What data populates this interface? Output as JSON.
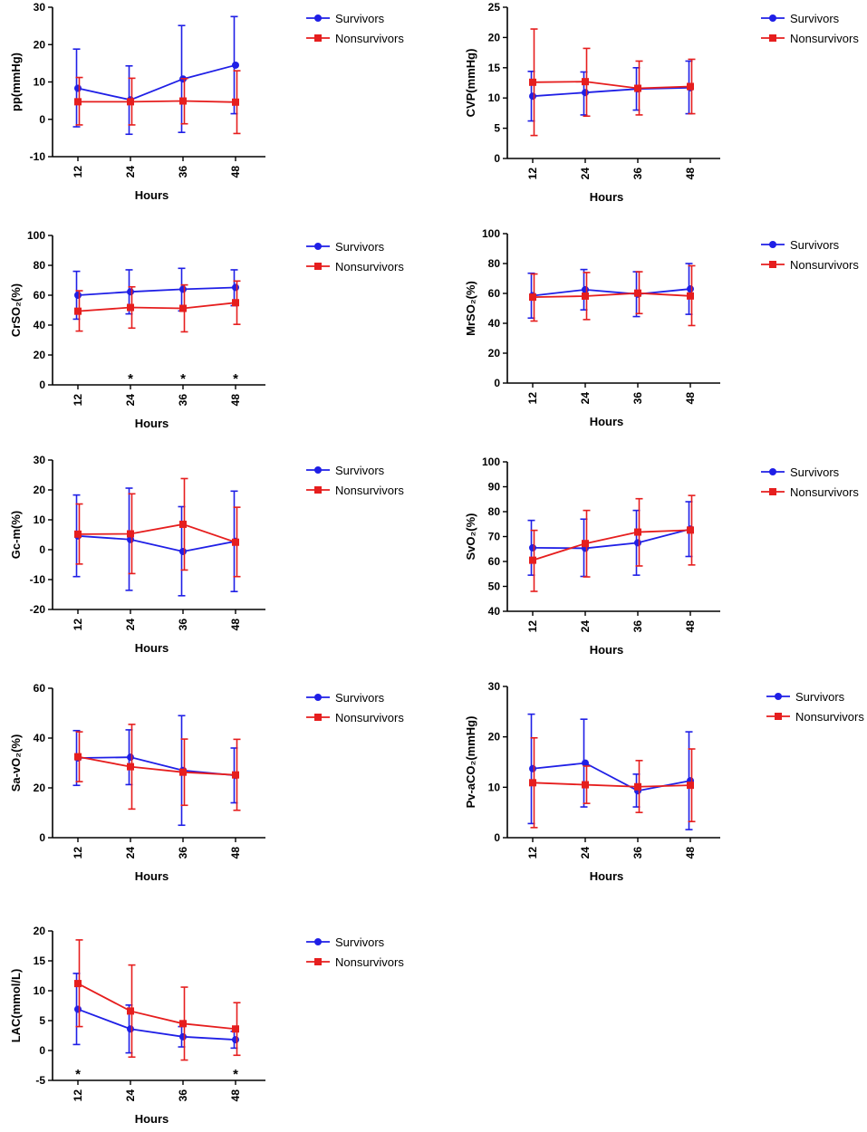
{
  "figure": {
    "legend": {
      "series_a": "Survivors",
      "series_b": "Nonsurvivors"
    },
    "colors": {
      "survivors": "#1f1fe6",
      "nonsurvivors": "#e61e1e",
      "axis": "#000000"
    }
  },
  "chart_data": [
    {
      "type": "line",
      "id": "pp",
      "title": "",
      "ylabel": "pp(mmHg)",
      "xlabel": "Hours",
      "categories": [
        "12",
        "24",
        "36",
        "48"
      ],
      "ylim": [
        -10,
        30
      ],
      "yticks": [
        -10,
        0,
        10,
        20,
        30
      ],
      "series": [
        {
          "name": "Survivors",
          "values": [
            8.3,
            5.2,
            10.8,
            14.5
          ],
          "err_low": [
            -2.0,
            -4.0,
            -3.5,
            1.5
          ],
          "err_high": [
            18.8,
            14.3,
            25.1,
            27.5
          ]
        },
        {
          "name": "Nonsurvivors",
          "values": [
            4.7,
            4.7,
            4.9,
            4.6
          ],
          "err_low": [
            -1.5,
            -1.5,
            -1.2,
            -3.8
          ],
          "err_high": [
            11.2,
            11.0,
            10.9,
            13.0
          ]
        }
      ],
      "annotations": []
    },
    {
      "type": "line",
      "id": "cvp",
      "title": "",
      "ylabel": "CVP(mmHg)",
      "xlabel": "Hours",
      "categories": [
        "12",
        "24",
        "36",
        "48"
      ],
      "ylim": [
        0,
        25
      ],
      "yticks": [
        0,
        5,
        10,
        15,
        20,
        25
      ],
      "series": [
        {
          "name": "Survivors",
          "values": [
            10.3,
            10.9,
            11.5,
            11.7
          ],
          "err_low": [
            6.2,
            7.2,
            8.0,
            7.4
          ],
          "err_high": [
            14.4,
            14.3,
            15.0,
            16.1
          ]
        },
        {
          "name": "Nonsurvivors",
          "values": [
            12.6,
            12.7,
            11.6,
            11.9
          ],
          "err_low": [
            3.8,
            7.0,
            7.2,
            7.4
          ],
          "err_high": [
            21.4,
            18.2,
            16.1,
            16.4
          ]
        }
      ],
      "annotations": []
    },
    {
      "type": "line",
      "id": "crso2",
      "title": "",
      "ylabel": "CrSO₂(%)",
      "xlabel": "Hours",
      "categories": [
        "12",
        "24",
        "36",
        "48"
      ],
      "ylim": [
        0,
        100
      ],
      "yticks": [
        0,
        20,
        40,
        60,
        80,
        100
      ],
      "series": [
        {
          "name": "Survivors",
          "values": [
            60,
            62.3,
            64,
            65.2
          ],
          "err_low": [
            44,
            47.5,
            49.5,
            53
          ],
          "err_high": [
            76,
            77,
            78,
            77
          ]
        },
        {
          "name": "Nonsurvivors",
          "values": [
            49.3,
            51.8,
            51.2,
            55
          ],
          "err_low": [
            36,
            38,
            35.5,
            40.5
          ],
          "err_high": [
            63,
            65.6,
            66.9,
            69.5
          ]
        }
      ],
      "annotations": [
        "*",
        "*",
        "*"
      ],
      "annotation_categories": [
        "24",
        "36",
        "48"
      ]
    },
    {
      "type": "line",
      "id": "mrso2",
      "title": "",
      "ylabel": "MrSO₂(%)",
      "xlabel": "Hours",
      "categories": [
        "12",
        "24",
        "36",
        "48"
      ],
      "ylim": [
        0,
        100
      ],
      "yticks": [
        0,
        20,
        40,
        60,
        80,
        100
      ],
      "series": [
        {
          "name": "Survivors",
          "values": [
            58.5,
            62.5,
            59.5,
            63
          ],
          "err_low": [
            43.5,
            49,
            44.5,
            46
          ],
          "err_high": [
            73.5,
            76,
            74.5,
            80
          ]
        },
        {
          "name": "Nonsurvivors",
          "values": [
            57.5,
            58.2,
            60.2,
            58.3
          ],
          "err_low": [
            41.5,
            42.5,
            46.5,
            38.5
          ],
          "err_high": [
            73,
            74,
            74.5,
            78.5
          ]
        }
      ],
      "annotations": []
    },
    {
      "type": "line",
      "id": "gcm",
      "title": "",
      "ylabel": "Gc-m(%)",
      "xlabel": "Hours",
      "categories": [
        "12",
        "24",
        "36",
        "48"
      ],
      "ylim": [
        -20,
        30
      ],
      "yticks": [
        -20,
        -10,
        0,
        10,
        20,
        30
      ],
      "series": [
        {
          "name": "Survivors",
          "values": [
            4.6,
            3.4,
            -0.6,
            2.8
          ],
          "err_low": [
            -9.0,
            -13.6,
            -15.4,
            -14.0
          ],
          "err_high": [
            18.3,
            20.6,
            14.4,
            19.6
          ]
        },
        {
          "name": "Nonsurvivors",
          "values": [
            5.2,
            5.3,
            8.5,
            2.5
          ],
          "err_low": [
            -4.8,
            -8.0,
            -6.8,
            -9.0
          ],
          "err_high": [
            15.3,
            18.7,
            23.8,
            14.2
          ]
        }
      ],
      "annotations": []
    },
    {
      "type": "line",
      "id": "svo2",
      "title": "",
      "ylabel": "SvO₂(%)",
      "xlabel": "Hours",
      "categories": [
        "12",
        "24",
        "36",
        "48"
      ],
      "ylim": [
        40,
        100
      ],
      "yticks": [
        40,
        50,
        60,
        70,
        80,
        90,
        100
      ],
      "series": [
        {
          "name": "Survivors",
          "values": [
            65.5,
            65.3,
            67.5,
            73
          ],
          "err_low": [
            54.5,
            54,
            54.5,
            62
          ],
          "err_high": [
            76.5,
            77,
            80.5,
            84
          ]
        },
        {
          "name": "Nonsurvivors",
          "values": [
            60.5,
            67.2,
            71.8,
            72.6
          ],
          "err_low": [
            48,
            53.8,
            58.2,
            58.6
          ],
          "err_high": [
            72.5,
            80.5,
            85.2,
            86.5
          ]
        }
      ],
      "annotations": []
    },
    {
      "type": "line",
      "id": "savo2",
      "title": "",
      "ylabel": "Sa-vO₂(%)",
      "xlabel": "Hours",
      "categories": [
        "12",
        "24",
        "36",
        "48"
      ],
      "ylim": [
        0,
        60
      ],
      "yticks": [
        0,
        20,
        40,
        60
      ],
      "series": [
        {
          "name": "Survivors",
          "values": [
            32,
            32.3,
            27,
            25
          ],
          "err_low": [
            21,
            21.3,
            5,
            14
          ],
          "err_high": [
            43,
            43.3,
            49,
            36
          ]
        },
        {
          "name": "Nonsurvivors",
          "values": [
            32.5,
            28.5,
            26.3,
            25.2
          ],
          "err_low": [
            22.5,
            11.5,
            13,
            11
          ],
          "err_high": [
            42.5,
            45.5,
            39.6,
            39.5
          ]
        }
      ],
      "annotations": []
    },
    {
      "type": "line",
      "id": "pvaco2",
      "title": "",
      "ylabel": "Pv-aCO₂(mmHg)",
      "xlabel": "Hours",
      "categories": [
        "12",
        "24",
        "36",
        "48"
      ],
      "ylim": [
        0,
        30
      ],
      "yticks": [
        0,
        10,
        20,
        30
      ],
      "series": [
        {
          "name": "Survivors",
          "values": [
            13.7,
            14.8,
            9.3,
            11.3
          ],
          "err_low": [
            2.8,
            6.1,
            6.1,
            1.6
          ],
          "err_high": [
            24.5,
            23.5,
            12.6,
            21.0
          ]
        },
        {
          "name": "Nonsurvivors",
          "values": [
            10.9,
            10.5,
            10.1,
            10.4
          ],
          "err_low": [
            2.0,
            6.8,
            5.0,
            3.2
          ],
          "err_high": [
            19.8,
            14.2,
            15.3,
            17.6
          ]
        }
      ],
      "annotations": []
    },
    {
      "type": "line",
      "id": "lac",
      "title": "",
      "ylabel": "LAC(mmol/L)",
      "xlabel": "Hours",
      "categories": [
        "12",
        "24",
        "36",
        "48"
      ],
      "ylim": [
        -5,
        20
      ],
      "yticks": [
        -5,
        0,
        5,
        10,
        15,
        20
      ],
      "series": [
        {
          "name": "Survivors",
          "values": [
            6.9,
            3.6,
            2.3,
            1.8
          ],
          "err_low": [
            1.0,
            -0.4,
            0.6,
            0.4
          ],
          "err_high": [
            12.9,
            7.6,
            4.0,
            3.2
          ]
        },
        {
          "name": "Nonsurvivors",
          "values": [
            11.2,
            6.6,
            4.5,
            3.6
          ],
          "err_low": [
            4.0,
            -1.1,
            -1.6,
            -0.8
          ],
          "err_high": [
            18.5,
            14.3,
            10.6,
            8.0
          ]
        }
      ],
      "annotations": [
        "*",
        "*"
      ],
      "annotation_categories": [
        "12",
        "48"
      ]
    }
  ]
}
